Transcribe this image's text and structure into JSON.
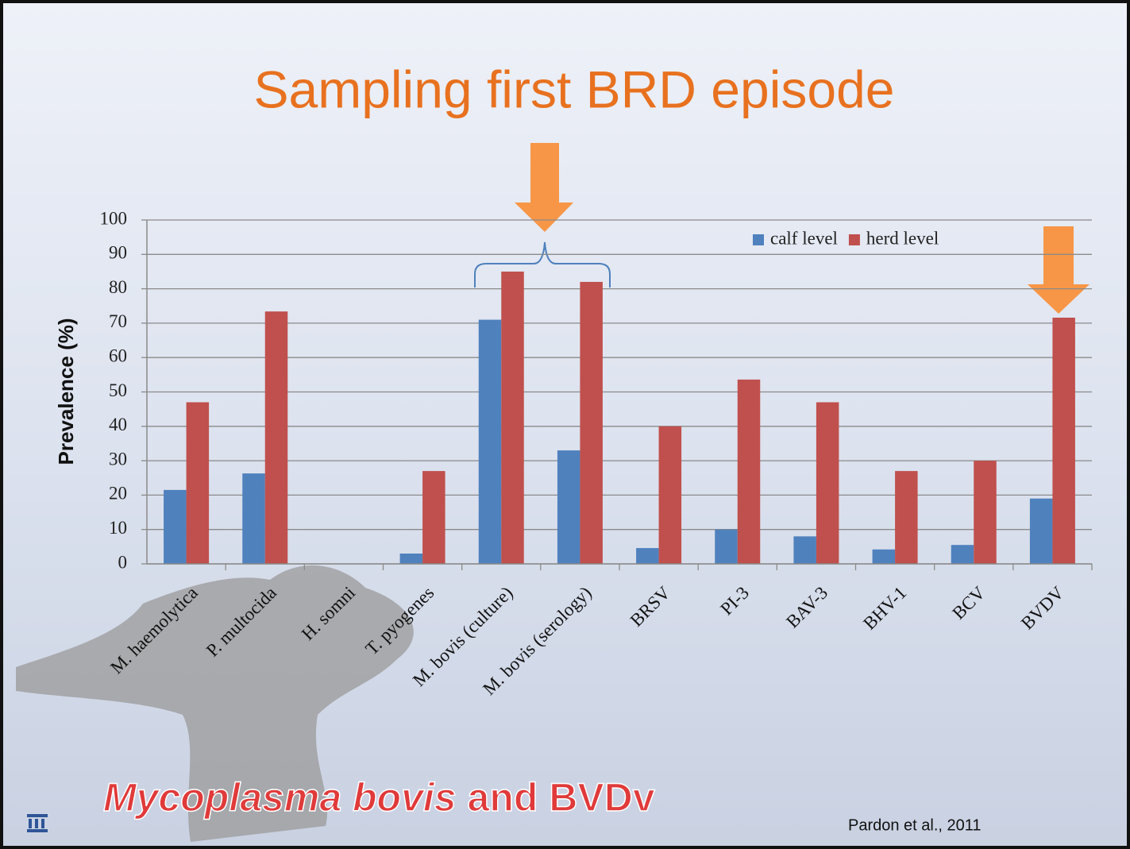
{
  "chart_data": {
    "type": "bar",
    "title": "Sampling first BRD episode",
    "y_label": "Prevalence (%)",
    "categories": [
      "M. haemolytica",
      "P. multocida",
      "H. somni",
      "T. pyogenes",
      "M. bovis (culture)",
      "M. bovis (serology)",
      "BRSV",
      "PI-3",
      "BAV-3",
      "BHV-1",
      "BCV",
      "BVDV"
    ],
    "series": [
      {
        "name": "calf level",
        "color": "#4f81bd",
        "values": [
          21.5,
          26.3,
          0,
          3,
          71,
          33,
          4.6,
          10,
          8,
          4.2,
          5.5,
          19
        ]
      },
      {
        "name": "herd level",
        "color": "#c0504d",
        "values": [
          47,
          73.4,
          0,
          27,
          85,
          82,
          40,
          53.6,
          47,
          27,
          30,
          71.6
        ]
      }
    ],
    "ylim": [
      0,
      100
    ],
    "yticks": [
      0,
      10,
      20,
      30,
      40,
      50,
      60,
      70,
      80,
      90,
      100
    ],
    "grid": true,
    "legend": "top-right",
    "annotations": [
      "Mycoplasma bovis",
      "and BVDv",
      "Pardon et al., 2011"
    ]
  }
}
